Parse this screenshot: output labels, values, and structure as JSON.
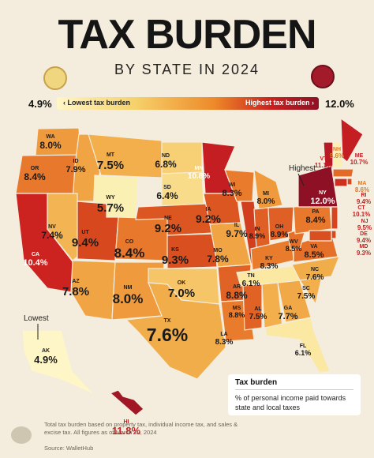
{
  "header": {
    "title": "TAX BURDEN",
    "subtitle": "BY STATE IN 2024"
  },
  "scale": {
    "min": "4.9%",
    "max": "12.0%",
    "low_label": "Lowest tax burden",
    "high_label": "Highest tax burden",
    "low_color": "#fff6c7",
    "high_color": "#8e1024"
  },
  "callouts": {
    "highest": "Highest",
    "lowest": "Lowest"
  },
  "legend": {
    "title": "Tax burden",
    "description": "% of personal income paid towards state and local taxes"
  },
  "footer": {
    "note": "Total tax burden based on property tax, individual income tax, and sales & excise tax. All figures as of March 12, 2024",
    "source": "Source: WalletHub"
  },
  "states": [
    {
      "code": "WA",
      "value": "8.0%",
      "color": "#ef9a3c"
    },
    {
      "code": "OR",
      "value": "8.4%",
      "color": "#e8782b"
    },
    {
      "code": "CA",
      "value": "10.4%",
      "color": "#cc2321"
    },
    {
      "code": "ID",
      "value": "7.9%",
      "color": "#f1a444"
    },
    {
      "code": "NV",
      "value": "7.4%",
      "color": "#f3b553"
    },
    {
      "code": "MT",
      "value": "7.5%",
      "color": "#f2af4c"
    },
    {
      "code": "WY",
      "value": "5.7%",
      "color": "#fbf0b4"
    },
    {
      "code": "UT",
      "value": "9.4%",
      "color": "#d8481f"
    },
    {
      "code": "AZ",
      "value": "7.8%",
      "color": "#f1a444"
    },
    {
      "code": "CO",
      "value": "8.4%",
      "color": "#e8782b"
    },
    {
      "code": "NM",
      "value": "8.0%",
      "color": "#ef9a3c"
    },
    {
      "code": "ND",
      "value": "6.8%",
      "color": "#f7cf75"
    },
    {
      "code": "SD",
      "value": "6.4%",
      "color": "#f9dc8a"
    },
    {
      "code": "NE",
      "value": "9.2%",
      "color": "#dc5622"
    },
    {
      "code": "KS",
      "value": "9.3%",
      "color": "#da4f20"
    },
    {
      "code": "OK",
      "value": "7.0%",
      "color": "#f5c567"
    },
    {
      "code": "TX",
      "value": "7.6%",
      "color": "#f2ad4b"
    },
    {
      "code": "MN",
      "value": "10.8%",
      "color": "#c41e22"
    },
    {
      "code": "IA",
      "value": "9.2%",
      "color": "#dc5622"
    },
    {
      "code": "MO",
      "value": "7.8%",
      "color": "#f1a444"
    },
    {
      "code": "AR",
      "value": "8.8%",
      "color": "#e06325"
    },
    {
      "code": "LA",
      "value": "8.3%",
      "color": "#e87c2c"
    },
    {
      "code": "WI",
      "value": "8.3%",
      "color": "#e87c2c"
    },
    {
      "code": "IL",
      "value": "9.7%",
      "color": "#d23f1f"
    },
    {
      "code": "MI",
      "value": "8.0%",
      "color": "#ef9a3c"
    },
    {
      "code": "IN",
      "value": "8.9%",
      "color": "#df5f24"
    },
    {
      "code": "OH",
      "value": "8.9%",
      "color": "#df5f24"
    },
    {
      "code": "KY",
      "value": "8.3%",
      "color": "#e87c2c"
    },
    {
      "code": "TN",
      "value": "6.1%",
      "color": "#fbe8a2"
    },
    {
      "code": "MS",
      "value": "8.8%",
      "color": "#e06325"
    },
    {
      "code": "AL",
      "value": "7.5%",
      "color": "#f2af4c"
    },
    {
      "code": "GA",
      "value": "7.7%",
      "color": "#f1a846"
    },
    {
      "code": "FL",
      "value": "6.1%",
      "color": "#fbe8a2"
    },
    {
      "code": "SC",
      "value": "7.5%",
      "color": "#f2af4c"
    },
    {
      "code": "NC",
      "value": "7.6%",
      "color": "#f2ad4b"
    },
    {
      "code": "VA",
      "value": "8.5%",
      "color": "#e57029"
    },
    {
      "code": "WV",
      "value": "8.5%",
      "color": "#e57029"
    },
    {
      "code": "PA",
      "value": "8.4%",
      "color": "#e8782b"
    },
    {
      "code": "NY",
      "value": "12.0%",
      "color": "#8e1024"
    },
    {
      "code": "VT",
      "value": "11.1%",
      "color": "#b81a25"
    },
    {
      "code": "NH",
      "value": "5.6%",
      "color": "#fbf0b4"
    },
    {
      "code": "ME",
      "value": "10.7%",
      "color": "#c41e22"
    },
    {
      "code": "MA",
      "value": "8.6%",
      "color": "#e36b27"
    },
    {
      "code": "RI",
      "value": "9.4%",
      "color": "#d8481f"
    },
    {
      "code": "CT",
      "value": "10.1%",
      "color": "#cd2e20"
    },
    {
      "code": "NJ",
      "value": "9.5%",
      "color": "#d6441f"
    },
    {
      "code": "DE",
      "value": "9.4%",
      "color": "#d8481f"
    },
    {
      "code": "MD",
      "value": "9.3%",
      "color": "#da4f20"
    },
    {
      "code": "AK",
      "value": "4.9%",
      "color": "#fff6c7"
    },
    {
      "code": "HI",
      "value": "11.8%",
      "color": "#a21726"
    }
  ]
}
